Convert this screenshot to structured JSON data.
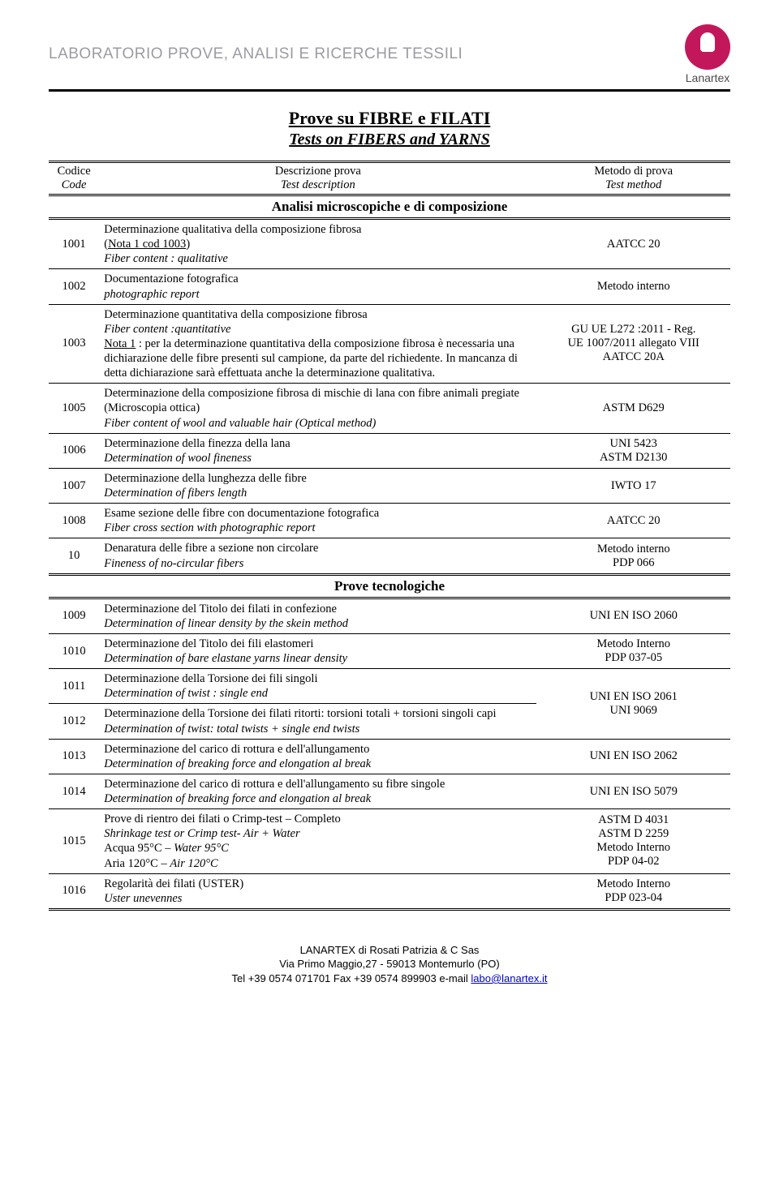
{
  "header": {
    "lab_title": "LABORATORIO  PROVE, ANALISI E RICERCHE TESSILI",
    "logo_text": "Lanartex",
    "logo_color": "#c2185b"
  },
  "titles": {
    "main": "Prove su  FIBRE e FILATI",
    "sub": "Tests on FIBERS and YARNS"
  },
  "table_headers": {
    "code_it": "Codice",
    "code_en": "Code",
    "desc_it": "Descrizione prova",
    "desc_en": "Test description",
    "method_it": "Metodo di prova",
    "method_en": "Test method"
  },
  "sections": {
    "s1": "Analisi microscopiche e di composizione",
    "s2": "Prove tecnologiche"
  },
  "rows": [
    {
      "code": "1001",
      "desc_it_1": "Determinazione qualitativa della composizione fibrosa",
      "desc_it_2_pre": "(",
      "desc_it_2_u": "Nota 1  cod 1003",
      "desc_it_2_post": ")",
      "desc_en": "Fiber content : qualitative",
      "method": "AATCC 20"
    },
    {
      "code": "1002",
      "desc_it": "Documentazione fotografica",
      "desc_en": "photographic report",
      "method": "Metodo interno"
    },
    {
      "code": "1003",
      "desc_it_1": "Determinazione quantitativa della composizione fibrosa",
      "desc_en_1": "Fiber content :quantitative",
      "note_u": "Nota 1",
      "note_rest": " : per la determinazione quantitativa della composizione fibrosa è necessaria una dichiarazione delle fibre presenti sul campione, da parte del richiedente. In mancanza di detta dichiarazione sarà effettuata anche la determinazione qualitativa.",
      "method_1": "GU UE L272 :2011 - Reg.",
      "method_2": "UE 1007/2011 allegato VIII",
      "method_3": "AATCC 20A"
    },
    {
      "code": "1005",
      "desc_it": "Determinazione della composizione fibrosa  di mischie di lana con fibre animali pregiate (Microscopia ottica)",
      "desc_en": "Fiber content of wool and valuable hair (Optical method)",
      "method": "ASTM D629"
    },
    {
      "code": "1006",
      "desc_it": "Determinazione della  finezza della lana",
      "desc_en": "Determination of wool fineness",
      "method_1": "UNI 5423",
      "method_2": "ASTM D2130"
    },
    {
      "code": "1007",
      "desc_it": "Determinazione della lunghezza delle fibre",
      "desc_en": "Determination of fibers length",
      "method": "IWTO 17"
    },
    {
      "code": "1008",
      "desc_it": "Esame sezione delle fibre con documentazione fotografica",
      "desc_en": "Fiber cross section with photographic report",
      "method": "AATCC 20"
    },
    {
      "code": "10",
      "desc_it": "Denaratura delle fibre a sezione non circolare",
      "desc_en": "Fineness of no-circular fibers",
      "method_1": "Metodo interno",
      "method_2": "PDP 066"
    },
    {
      "code": "1009",
      "desc_it": "Determinazione del Titolo dei filati in confezione",
      "desc_en": "Determination of linear density by the skein method",
      "method": "UNI EN ISO 2060"
    },
    {
      "code": "1010",
      "desc_it": "Determinazione del Titolo dei fili elastomeri",
      "desc_en": "Determination of bare elastane yarns linear density",
      "method_1": "Metodo Interno",
      "method_2": "PDP 037-05"
    },
    {
      "code": "1011",
      "desc_it": "Determinazione della Torsione dei fili singoli",
      "desc_en": "Determination of twist : single end",
      "method_1": "UNI EN ISO 2061",
      "method_2": "UNI 9069"
    },
    {
      "code": "1012",
      "desc_it": "Determinazione della Torsione dei filati ritorti: torsioni totali + torsioni singoli capi",
      "desc_en": "Determination of twist: total twists + single end twists"
    },
    {
      "code": "1013",
      "desc_it": "Determinazione del carico di rottura e dell'allungamento",
      "desc_en": "Determination of breaking force and elongation al break",
      "method": "UNI EN ISO 2062"
    },
    {
      "code": "1014",
      "desc_it": "Determinazione del carico di rottura e dell'allungamento su fibre singole",
      "desc_en": "Determination of breaking force and elongation al break",
      "method": "UNI EN ISO 5079"
    },
    {
      "code": "1015",
      "desc_it_1": "Prove di rientro dei filati  o Crimp-test – Completo",
      "desc_en_1": "Shrinkage test or Crimp test- Air + Water",
      "desc_mix_2a": "Acqua 95°C – ",
      "desc_mix_2b": "Water 95°C",
      "desc_mix_3a": "Aria 120°C – ",
      "desc_mix_3b": "Air 120°C",
      "method_1": "ASTM D 4031",
      "method_2": "ASTM D 2259",
      "method_3": "Metodo Interno",
      "method_4": "PDP 04-02"
    },
    {
      "code": "1016",
      "desc_it": "Regolarità dei filati (USTER)",
      "desc_en": "Uster unevennes",
      "method_1": "Metodo Interno",
      "method_2": "PDP 023-04"
    }
  ],
  "footer": {
    "line1": "LANARTEX di Rosati Patrizia & C Sas",
    "line2": "Via Primo Maggio,27  - 59013 Montemurlo (PO)",
    "line3_pre": "Tel +39 0574 071701   Fax +39 0574 899903  e-mail ",
    "email": "labo@lanartex.it"
  }
}
